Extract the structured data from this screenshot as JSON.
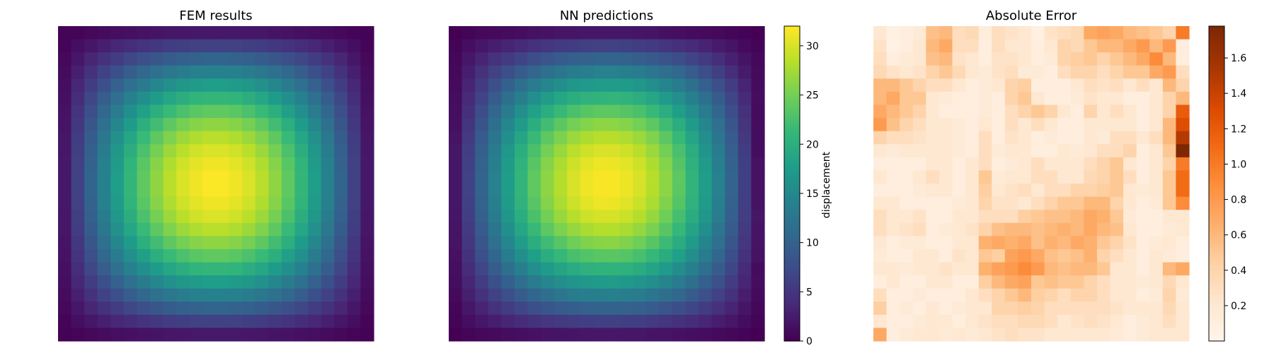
{
  "figure": {
    "panels": [
      {
        "title": "FEM results"
      },
      {
        "title": "NN predictions"
      },
      {
        "title": "Absolute Error"
      }
    ],
    "colorbars": [
      {
        "label": "displacement",
        "colormap": "viridis",
        "range": [
          0,
          32
        ],
        "ticks": [
          "0",
          "5",
          "10",
          "15",
          "20",
          "25",
          "30"
        ]
      },
      {
        "label": "",
        "colormap": "Oranges",
        "range": [
          0,
          1.78
        ],
        "ticks": [
          "0.2",
          "0.4",
          "0.6",
          "0.8",
          "1.0",
          "1.2",
          "1.4",
          "1.6"
        ]
      }
    ]
  },
  "chart_data": [
    {
      "type": "heatmap",
      "title": "FEM results",
      "grid_size": [
        24,
        24
      ],
      "vmin": 0,
      "vmax": 32,
      "colormap": "viridis",
      "values_description_source": "approximate symmetric bump, peak about 32 at center, about 0 at corners",
      "axes_visible": false
    },
    {
      "type": "heatmap",
      "title": "NN predictions",
      "grid_size": [
        24,
        24
      ],
      "vmin": 0,
      "vmax": 32,
      "colormap": "viridis",
      "colorbar_label": "displacement",
      "axes_visible": false
    },
    {
      "type": "heatmap",
      "title": "Absolute Error",
      "grid_size": [
        24,
        24
      ],
      "vmin": 0,
      "vmax": 1.78,
      "colormap": "Oranges",
      "axes_visible": false,
      "values": [
        [
          0.2,
          0.08,
          0.1,
          0.15,
          0.55,
          0.6,
          0.3,
          0.35,
          0.12,
          0.3,
          0.25,
          0.2,
          0.08,
          0.25,
          0.3,
          0.35,
          0.7,
          0.75,
          0.7,
          0.6,
          0.55,
          0.5,
          0.4,
          1.0
        ],
        [
          0.25,
          0.05,
          0.1,
          0.2,
          0.6,
          0.7,
          0.3,
          0.3,
          0.1,
          0.3,
          0.2,
          0.2,
          0.1,
          0.2,
          0.4,
          0.35,
          0.5,
          0.6,
          0.6,
          0.7,
          0.8,
          0.6,
          0.8,
          0.1
        ],
        [
          0.3,
          0.1,
          0.15,
          0.2,
          0.55,
          0.6,
          0.25,
          0.2,
          0.1,
          0.25,
          0.25,
          0.2,
          0.1,
          0.15,
          0.4,
          0.45,
          0.5,
          0.4,
          0.5,
          0.6,
          0.7,
          0.9,
          0.6,
          0.1
        ],
        [
          0.35,
          0.25,
          0.2,
          0.25,
          0.4,
          0.5,
          0.35,
          0.2,
          0.15,
          0.25,
          0.3,
          0.15,
          0.15,
          0.1,
          0.3,
          0.4,
          0.4,
          0.3,
          0.4,
          0.5,
          0.5,
          0.7,
          0.8,
          0.3
        ],
        [
          0.6,
          0.6,
          0.5,
          0.4,
          0.3,
          0.3,
          0.2,
          0.1,
          0.15,
          0.2,
          0.4,
          0.45,
          0.1,
          0.1,
          0.1,
          0.2,
          0.3,
          0.25,
          0.3,
          0.2,
          0.3,
          0.2,
          0.6,
          0.4
        ],
        [
          0.6,
          0.7,
          0.5,
          0.5,
          0.2,
          0.15,
          0.1,
          0.1,
          0.15,
          0.1,
          0.4,
          0.5,
          0.2,
          0.1,
          0.1,
          0.15,
          0.25,
          0.2,
          0.2,
          0.1,
          0.1,
          0.2,
          0.4,
          0.6
        ],
        [
          0.7,
          0.6,
          0.5,
          0.4,
          0.2,
          0.1,
          0.1,
          0.1,
          0.15,
          0.1,
          0.3,
          0.4,
          0.5,
          0.4,
          0.2,
          0.1,
          0.4,
          0.2,
          0.3,
          0.2,
          0.1,
          0.2,
          0.4,
          1.2
        ],
        [
          0.8,
          0.55,
          0.4,
          0.3,
          0.2,
          0.2,
          0.15,
          0.1,
          0.2,
          0.1,
          0.3,
          0.2,
          0.3,
          0.2,
          0.1,
          0.1,
          0.2,
          0.2,
          0.2,
          0.2,
          0.1,
          0.2,
          0.6,
          1.3
        ],
        [
          0.4,
          0.3,
          0.3,
          0.25,
          0.2,
          0.2,
          0.15,
          0.1,
          0.3,
          0.1,
          0.25,
          0.2,
          0.1,
          0.15,
          0.1,
          0.1,
          0.2,
          0.15,
          0.3,
          0.3,
          0.2,
          0.3,
          0.6,
          1.5
        ],
        [
          0.2,
          0.15,
          0.2,
          0.2,
          0.2,
          0.2,
          0.15,
          0.1,
          0.3,
          0.15,
          0.2,
          0.2,
          0.1,
          0.1,
          0.2,
          0.15,
          0.2,
          0.3,
          0.3,
          0.4,
          0.1,
          0.2,
          0.5,
          1.78
        ],
        [
          0.1,
          0.1,
          0.1,
          0.1,
          0.2,
          0.2,
          0.1,
          0.2,
          0.3,
          0.1,
          0.15,
          0.2,
          0.3,
          0.2,
          0.2,
          0.2,
          0.3,
          0.4,
          0.5,
          0.2,
          0.1,
          0.2,
          0.4,
          1.0
        ],
        [
          0.2,
          0.1,
          0.1,
          0.2,
          0.3,
          0.2,
          0.1,
          0.2,
          0.5,
          0.15,
          0.2,
          0.2,
          0.3,
          0.3,
          0.2,
          0.2,
          0.35,
          0.4,
          0.5,
          0.3,
          0.1,
          0.2,
          0.5,
          1.1
        ],
        [
          0.1,
          0.1,
          0.1,
          0.15,
          0.2,
          0.2,
          0.1,
          0.2,
          0.45,
          0.2,
          0.25,
          0.3,
          0.2,
          0.3,
          0.3,
          0.4,
          0.4,
          0.45,
          0.5,
          0.2,
          0.15,
          0.2,
          0.5,
          1.1
        ],
        [
          0.2,
          0.2,
          0.1,
          0.1,
          0.1,
          0.1,
          0.15,
          0.2,
          0.4,
          0.25,
          0.25,
          0.2,
          0.3,
          0.4,
          0.5,
          0.5,
          0.6,
          0.6,
          0.4,
          0.2,
          0.1,
          0.15,
          0.5,
          0.9
        ],
        [
          0.3,
          0.2,
          0.2,
          0.25,
          0.1,
          0.1,
          0.2,
          0.2,
          0.3,
          0.3,
          0.3,
          0.45,
          0.5,
          0.55,
          0.55,
          0.6,
          0.7,
          0.65,
          0.5,
          0.15,
          0.1,
          0.1,
          0.2,
          0.2
        ],
        [
          0.3,
          0.2,
          0.25,
          0.3,
          0.1,
          0.15,
          0.2,
          0.25,
          0.4,
          0.55,
          0.6,
          0.6,
          0.55,
          0.6,
          0.65,
          0.6,
          0.7,
          0.6,
          0.55,
          0.2,
          0.1,
          0.1,
          0.15,
          0.2
        ],
        [
          0.2,
          0.1,
          0.15,
          0.15,
          0.1,
          0.1,
          0.2,
          0.2,
          0.65,
          0.7,
          0.65,
          0.7,
          0.55,
          0.65,
          0.6,
          0.7,
          0.65,
          0.5,
          0.4,
          0.25,
          0.1,
          0.15,
          0.2,
          0.1
        ],
        [
          0.15,
          0.1,
          0.1,
          0.2,
          0.2,
          0.1,
          0.25,
          0.2,
          0.5,
          0.45,
          0.75,
          0.8,
          0.7,
          0.55,
          0.5,
          0.55,
          0.65,
          0.4,
          0.3,
          0.2,
          0.1,
          0.2,
          0.15,
          0.1
        ],
        [
          0.2,
          0.2,
          0.15,
          0.2,
          0.2,
          0.25,
          0.2,
          0.2,
          0.65,
          0.75,
          0.8,
          0.9,
          0.8,
          0.6,
          0.55,
          0.6,
          0.6,
          0.5,
          0.2,
          0.2,
          0.1,
          0.2,
          0.6,
          0.7
        ],
        [
          0.1,
          0.2,
          0.1,
          0.1,
          0.2,
          0.2,
          0.1,
          0.1,
          0.45,
          0.6,
          0.7,
          0.75,
          0.5,
          0.55,
          0.5,
          0.5,
          0.4,
          0.3,
          0.2,
          0.2,
          0.15,
          0.2,
          0.35,
          0.2
        ],
        [
          0.3,
          0.1,
          0.1,
          0.15,
          0.1,
          0.1,
          0.1,
          0.2,
          0.3,
          0.4,
          0.5,
          0.6,
          0.45,
          0.4,
          0.3,
          0.4,
          0.4,
          0.3,
          0.2,
          0.2,
          0.1,
          0.15,
          0.4,
          0.15
        ],
        [
          0.45,
          0.1,
          0.15,
          0.1,
          0.2,
          0.1,
          0.15,
          0.2,
          0.2,
          0.4,
          0.4,
          0.45,
          0.4,
          0.3,
          0.3,
          0.3,
          0.3,
          0.3,
          0.25,
          0.2,
          0.2,
          0.2,
          0.35,
          0.2
        ],
        [
          0.2,
          0.1,
          0.1,
          0.15,
          0.2,
          0.2,
          0.1,
          0.2,
          0.25,
          0.3,
          0.3,
          0.35,
          0.35,
          0.3,
          0.2,
          0.25,
          0.3,
          0.25,
          0.2,
          0.1,
          0.15,
          0.2,
          0.3,
          0.2
        ],
        [
          0.7,
          0.1,
          0.15,
          0.2,
          0.2,
          0.15,
          0.2,
          0.15,
          0.2,
          0.25,
          0.3,
          0.25,
          0.25,
          0.2,
          0.2,
          0.2,
          0.2,
          0.2,
          0.15,
          0.1,
          0.15,
          0.2,
          0.2,
          0.2
        ]
      ]
    }
  ]
}
